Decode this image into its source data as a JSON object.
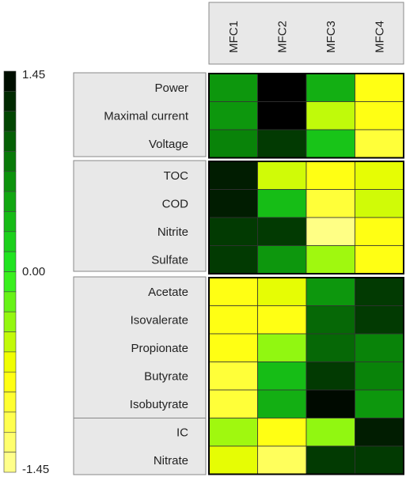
{
  "chart_data": {
    "type": "heatmap",
    "columns": [
      "MFC1",
      "MFC2",
      "MFC3",
      "MFC4"
    ],
    "groups": [
      {
        "rows": [
          {
            "label": "Power",
            "values": [
              0.62,
              1.45,
              0.45,
              -0.8
            ]
          },
          {
            "label": "Maximal current",
            "values": [
              0.62,
              1.45,
              -0.5,
              -0.8
            ]
          },
          {
            "label": "Voltage",
            "values": [
              0.75,
              1.15,
              0.3,
              -0.98
            ]
          }
        ]
      },
      {
        "rows": [
          {
            "label": "TOC",
            "values": [
              1.3,
              -0.55,
              -0.8,
              -0.62
            ]
          },
          {
            "label": "COD",
            "values": [
              1.3,
              0.35,
              -0.98,
              -0.55
            ]
          },
          {
            "label": "Nitrite",
            "values": [
              1.15,
              1.15,
              -1.35,
              -0.8
            ]
          },
          {
            "label": "Sulfate",
            "values": [
              1.15,
              0.62,
              -0.4,
              -0.8
            ]
          }
        ]
      },
      {
        "rows": [
          {
            "label": "Acetate",
            "values": [
              -0.8,
              -0.62,
              0.62,
              1.15
            ]
          },
          {
            "label": "Isovalerate",
            "values": [
              -0.8,
              -0.8,
              0.9,
              1.15
            ]
          },
          {
            "label": "Propionate",
            "values": [
              -0.8,
              -0.35,
              0.9,
              0.75
            ]
          },
          {
            "label": "Butyrate",
            "values": [
              -0.98,
              0.35,
              1.15,
              0.75
            ]
          },
          {
            "label": "Isobutyrate",
            "values": [
              -0.98,
              0.45,
              1.4,
              0.62
            ]
          }
        ],
        "subgroup_rows": [
          {
            "label": "IC",
            "values": [
              -0.4,
              -0.8,
              -0.35,
              1.3
            ]
          },
          {
            "label": "Nitrate",
            "values": [
              -0.62,
              -1.15,
              1.15,
              1.15
            ]
          }
        ]
      }
    ],
    "color_scale": {
      "min": -1.45,
      "max": 1.45,
      "min_label": "-1.45",
      "mid_label": "0.00",
      "max_label": "1.45",
      "stops": [
        {
          "value": -1.45,
          "color": "#ffff99"
        },
        {
          "value": -0.7,
          "color": "#ffff00"
        },
        {
          "value": 0.0,
          "color": "#22ee22"
        },
        {
          "value": 0.7,
          "color": "#0a8c0a"
        },
        {
          "value": 1.1,
          "color": "#024402"
        },
        {
          "value": 1.45,
          "color": "#000000"
        }
      ],
      "steps": 20
    }
  }
}
